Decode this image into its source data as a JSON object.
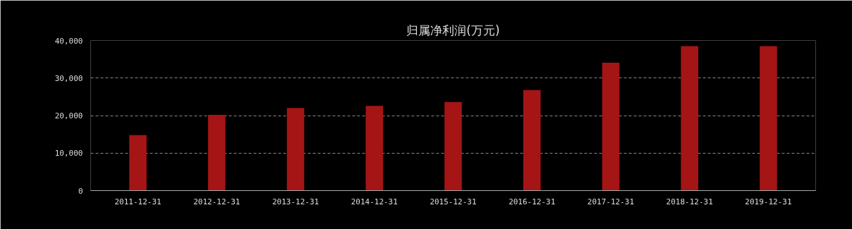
{
  "chart_data": {
    "type": "bar",
    "title": "归属净利润(万元)",
    "categories": [
      "2011-12-31",
      "2012-12-31",
      "2013-12-31",
      "2014-12-31",
      "2015-12-31",
      "2016-12-31",
      "2017-12-31",
      "2018-12-31",
      "2019-12-31"
    ],
    "values": [
      14800,
      20200,
      22000,
      22600,
      23600,
      26800,
      34100,
      38500,
      38500
    ],
    "color": "#a51515",
    "ylim": [
      0,
      40000
    ],
    "yticks": [
      {
        "value": 0,
        "label": "0"
      },
      {
        "value": 10000,
        "label": "10,000"
      },
      {
        "value": 20000,
        "label": "20,000"
      },
      {
        "value": 30000,
        "label": "30,000"
      },
      {
        "value": 40000,
        "label": "40,000"
      }
    ],
    "grid": "y"
  }
}
